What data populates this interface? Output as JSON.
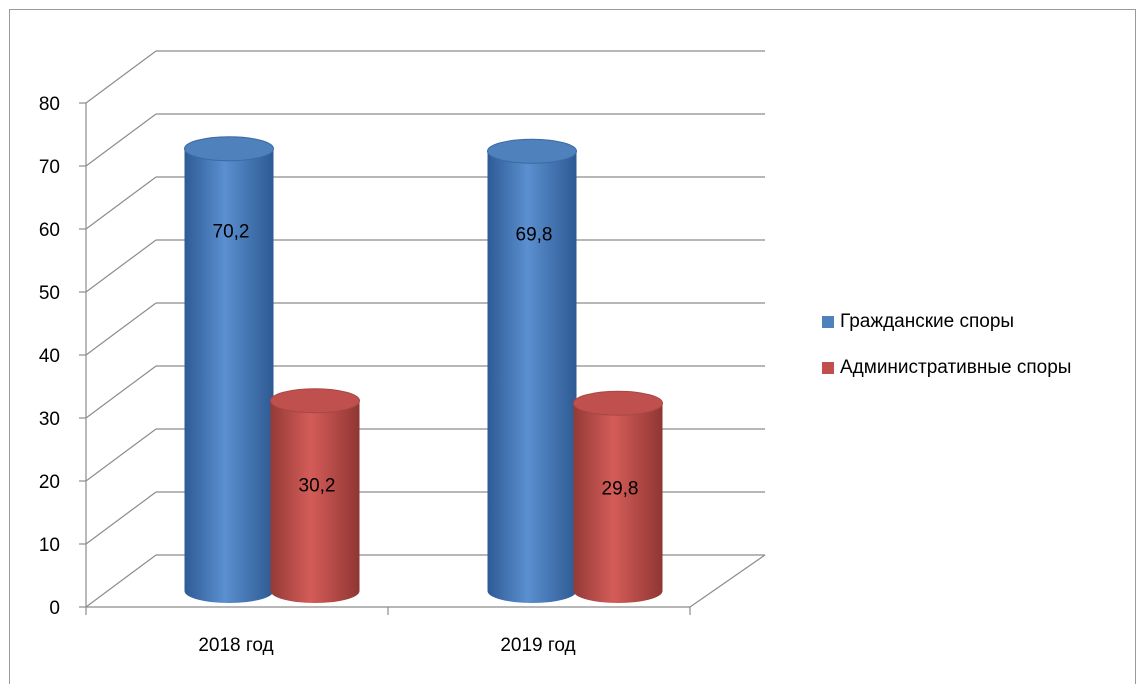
{
  "chart_data": {
    "type": "bar",
    "style": "3d-cylinder",
    "categories": [
      "2018 год",
      "2019 год"
    ],
    "series": [
      {
        "name": "Гражданские споры",
        "values": [
          70.2,
          69.8
        ],
        "labels": [
          "70,2",
          "69,8"
        ],
        "color": "#4f81bd"
      },
      {
        "name": "Административные споры",
        "values": [
          30.2,
          29.8
        ],
        "labels": [
          "30,2",
          "29,8"
        ],
        "color": "#c0504d"
      }
    ],
    "yticks": [
      "0",
      "10",
      "20",
      "30",
      "40",
      "50",
      "60",
      "70",
      "80"
    ],
    "ylim": [
      0,
      80
    ],
    "grid": true,
    "legend_position": "right"
  }
}
